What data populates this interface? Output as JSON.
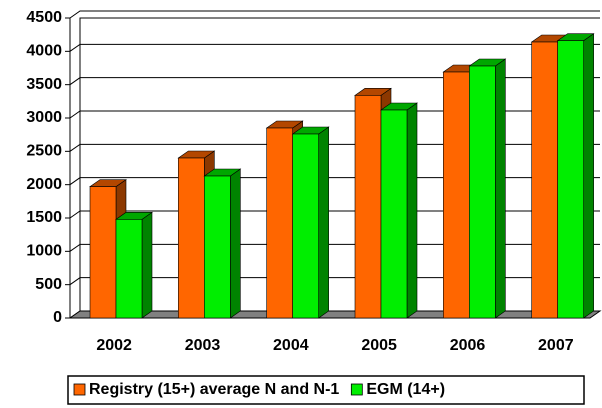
{
  "chart_data": {
    "type": "bar",
    "categories": [
      "2002",
      "2003",
      "2004",
      "2005",
      "2006",
      "2007"
    ],
    "series": [
      {
        "name": "Registry (15+) average N and N-1",
        "color": "#ff6600",
        "values": [
          1970,
          2400,
          2850,
          3340,
          3690,
          4140
        ]
      },
      {
        "name": "EGM (14+)",
        "color": "#00ee00",
        "values": [
          1480,
          2130,
          2760,
          3120,
          3780,
          4160
        ]
      }
    ],
    "ylim": [
      0,
      4500
    ],
    "yticks": [
      0,
      500,
      1000,
      1500,
      2000,
      2500,
      3000,
      3500,
      4000,
      4500
    ],
    "grid": true,
    "legend": "bottom"
  }
}
